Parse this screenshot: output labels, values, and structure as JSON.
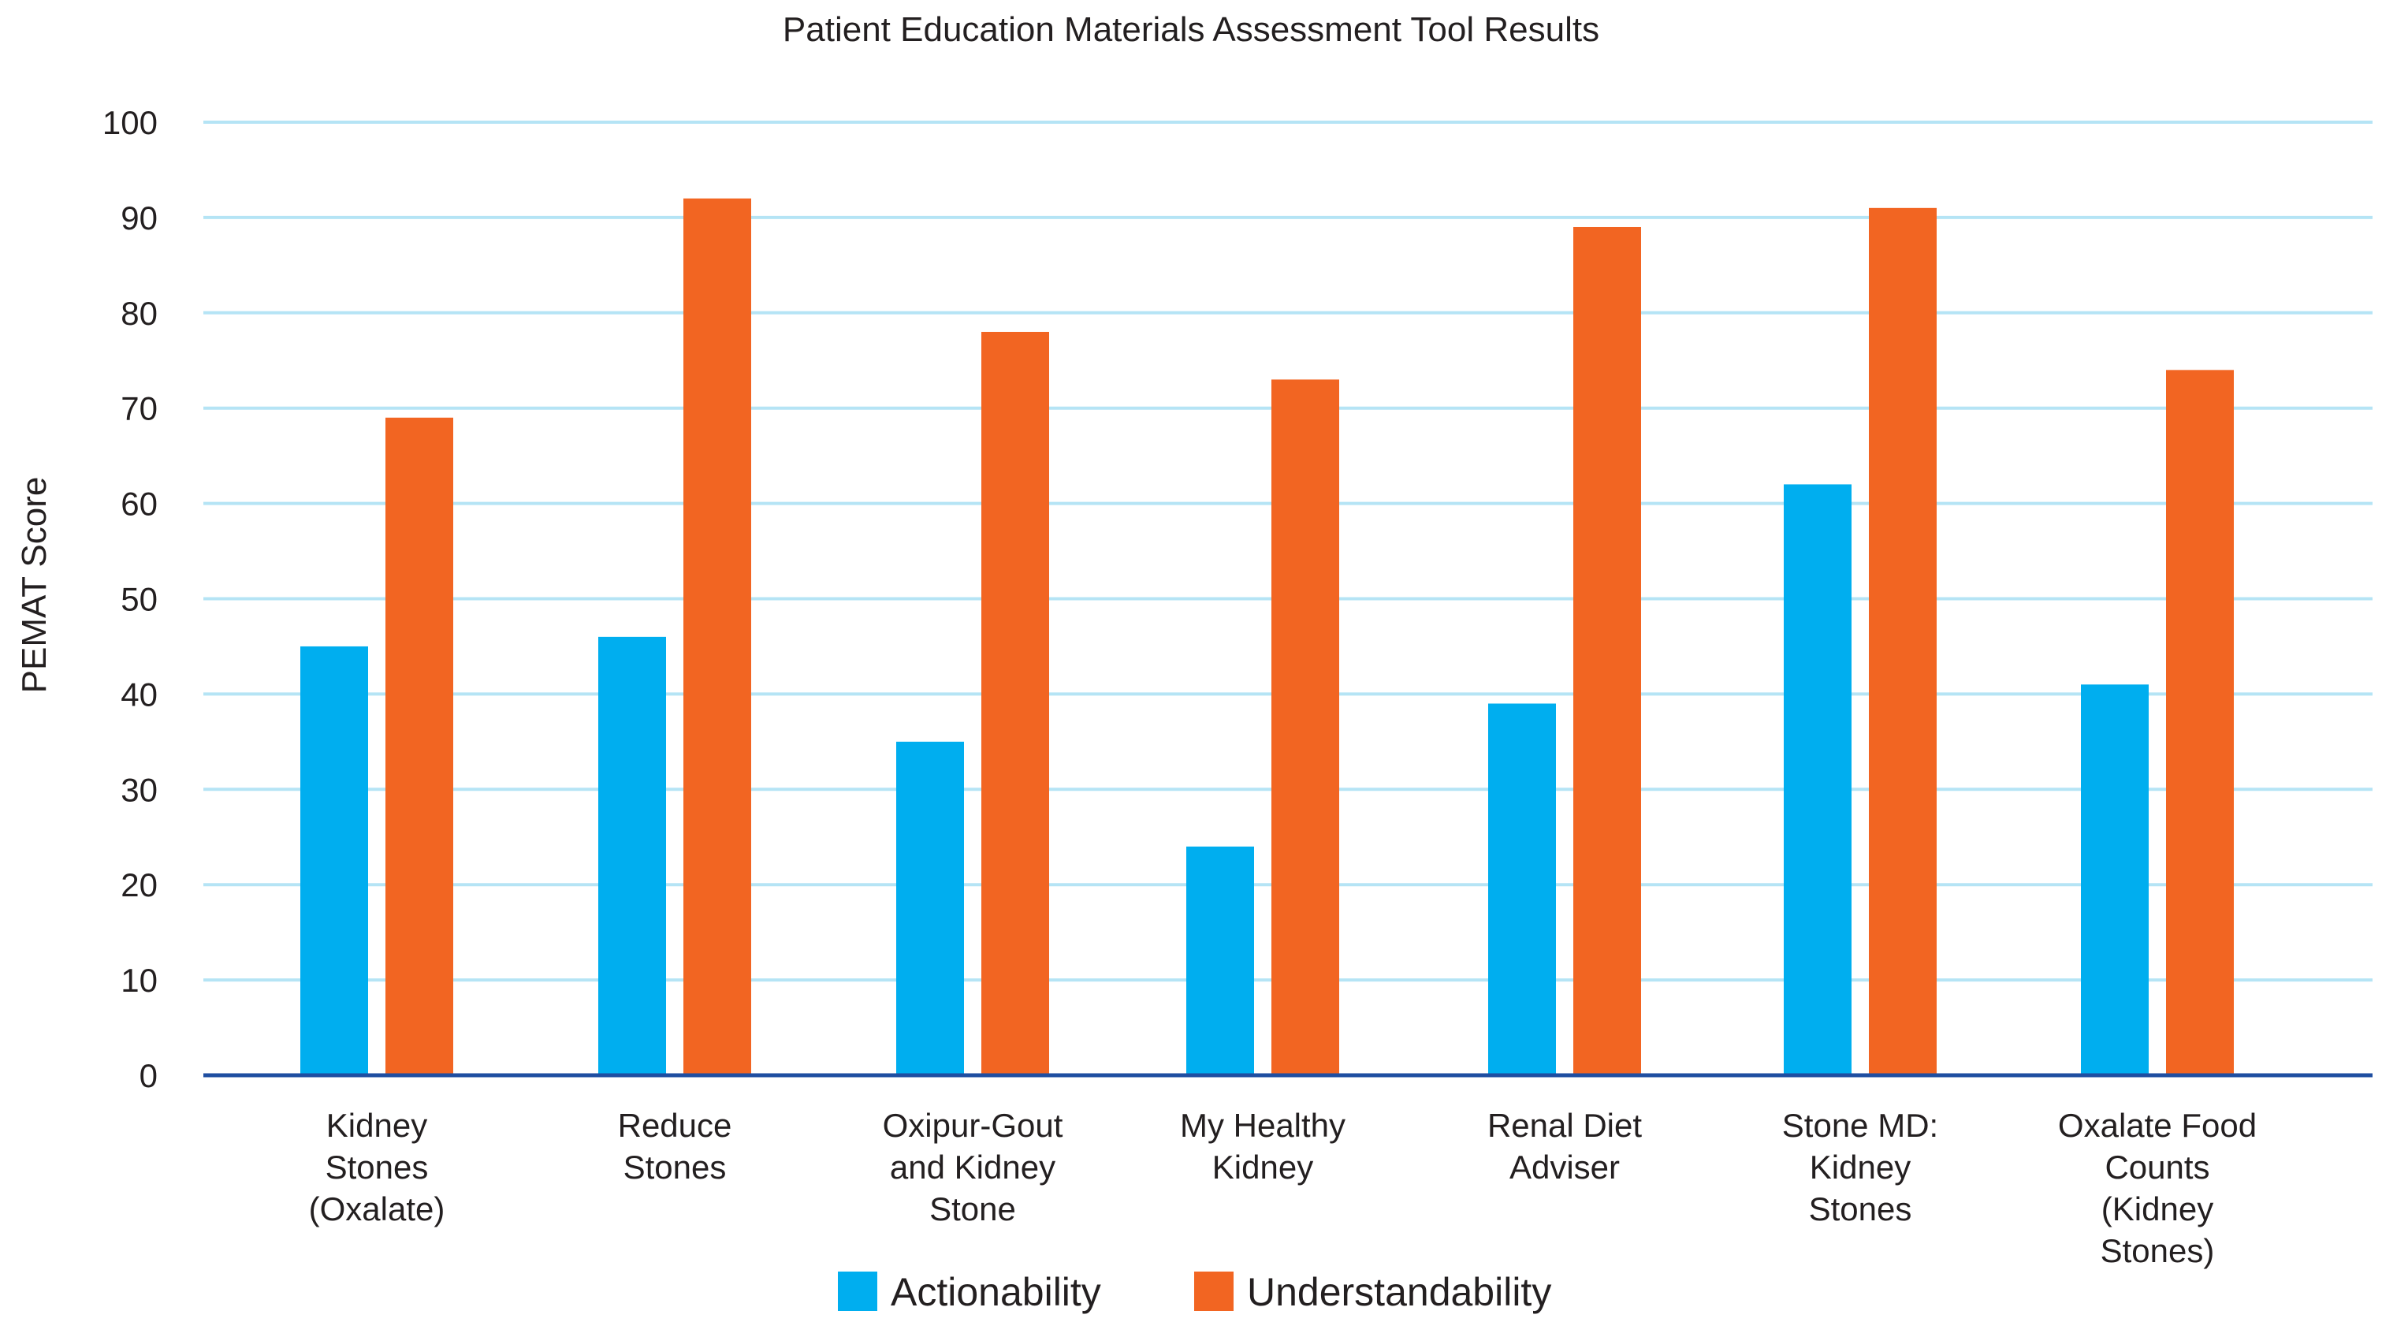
{
  "chart_data": {
    "type": "bar",
    "title": "Patient Education Materials Assessment Tool Results",
    "xlabel": "",
    "ylabel": "PEMAT Score",
    "ylim": [
      0,
      100
    ],
    "yticks": [
      0,
      10,
      20,
      30,
      40,
      50,
      60,
      70,
      80,
      90,
      100
    ],
    "grid": true,
    "legend_position": "bottom-center",
    "categories": [
      [
        "Kidney",
        "Stones",
        "(Oxalate)"
      ],
      [
        "Reduce",
        "Stones"
      ],
      [
        "Oxipur-Gout",
        "and Kidney",
        "Stone"
      ],
      [
        "My Healthy",
        "Kidney"
      ],
      [
        "Renal Diet",
        "Adviser"
      ],
      [
        "Stone MD:",
        "Kidney",
        "Stones"
      ],
      [
        "Oxalate Food",
        "Counts",
        "(Kidney",
        "Stones)"
      ]
    ],
    "series": [
      {
        "name": "Actionability",
        "color": "#00aeef",
        "values": [
          45,
          46,
          35,
          24,
          39,
          62,
          41
        ]
      },
      {
        "name": "Understandability",
        "color": "#f26522",
        "values": [
          69,
          92,
          78,
          73,
          89,
          91,
          74
        ]
      }
    ],
    "colors": {
      "gridline": "#b5e4f5",
      "baseline": "#1f4ea1",
      "text": "#231f20"
    }
  }
}
